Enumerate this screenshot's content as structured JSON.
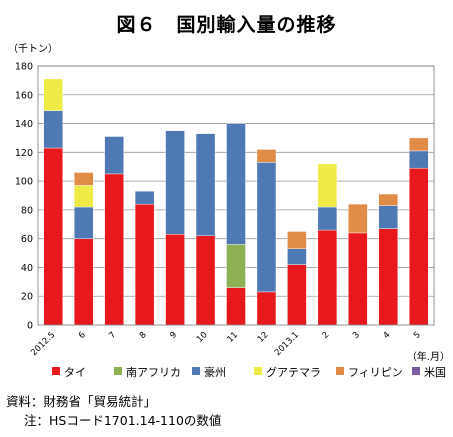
{
  "title": "図６　国別輸入量の推移",
  "chart_data": {
    "type": "bar",
    "stacked": true,
    "ylabel": "（千トン）",
    "xlabel": "（年.月）",
    "ylim": [
      0,
      180
    ],
    "y_ticks": [
      0,
      20,
      40,
      60,
      80,
      100,
      120,
      140,
      160,
      180
    ],
    "grid": true,
    "legend_position": "bottom",
    "categories": [
      "2012.5",
      "6",
      "7",
      "8",
      "9",
      "10",
      "11",
      "12",
      "2013.1",
      "2",
      "3",
      "4",
      "5"
    ],
    "series": [
      {
        "name": "タイ",
        "color": "#e8191d",
        "values": [
          123,
          60,
          105,
          84,
          63,
          62,
          26,
          23,
          42,
          66,
          64,
          67,
          109
        ]
      },
      {
        "name": "南アフリカ",
        "color": "#8db154",
        "values": [
          0,
          0,
          0,
          0,
          0,
          0,
          30,
          0,
          0,
          0,
          0,
          0,
          0
        ]
      },
      {
        "name": "豪州",
        "color": "#4f79b5",
        "values": [
          26,
          22,
          26,
          9,
          72,
          71,
          84,
          90,
          11,
          16,
          0,
          16,
          12
        ]
      },
      {
        "name": "グアテマラ",
        "color": "#eeea46",
        "values": [
          22,
          15,
          0,
          0,
          0,
          0,
          0,
          0,
          0,
          30,
          0,
          0,
          0
        ]
      },
      {
        "name": "フィリピン",
        "color": "#e08b46",
        "values": [
          0,
          9,
          0,
          0,
          0,
          0,
          0,
          9,
          12,
          0,
          20,
          8,
          9
        ]
      },
      {
        "name": "米国",
        "color": "#7a5c9c",
        "values": [
          0,
          0,
          0,
          0,
          0,
          0,
          0,
          0,
          0,
          0,
          0,
          0,
          0
        ]
      }
    ]
  },
  "notes": {
    "source": "資料：財務省「貿易統計」",
    "note": "注：HSコード1701.14-110の数値"
  }
}
